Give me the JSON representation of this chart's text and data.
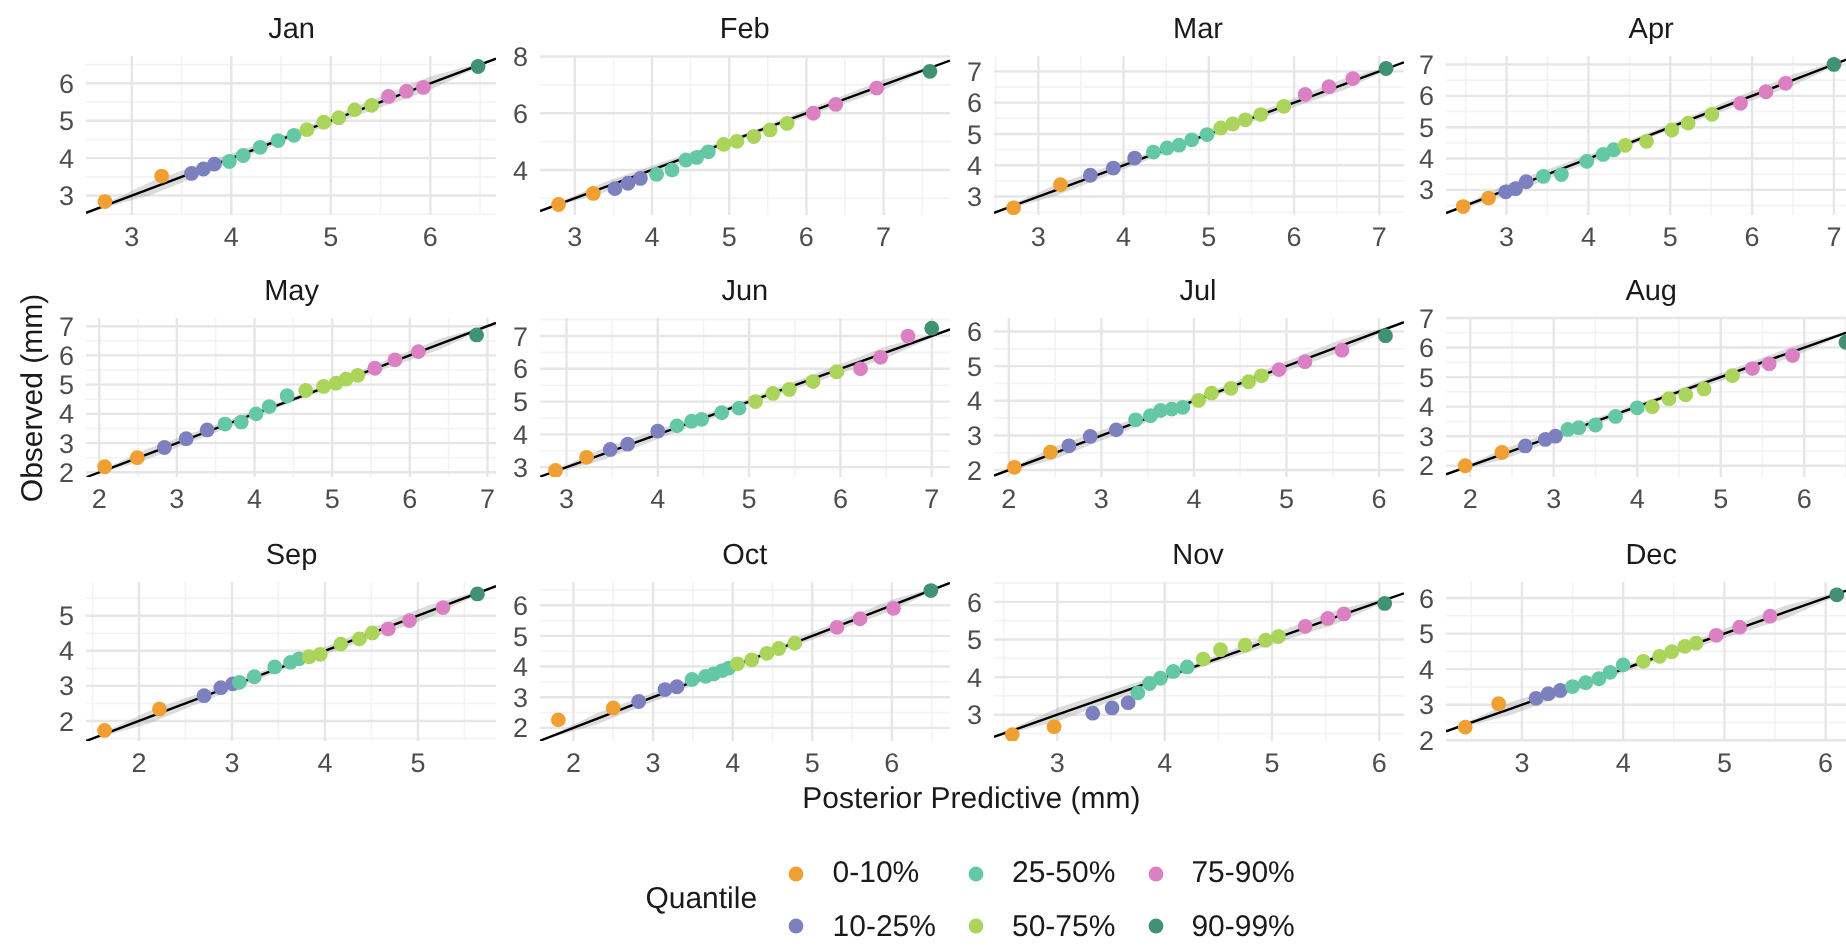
{
  "chart_data": [
    {
      "type": "scatter",
      "title": "Jan",
      "xlim": [
        2.54,
        6.66
      ],
      "ylim": [
        2.48,
        6.73
      ],
      "xticks": [
        3,
        4,
        5,
        6
      ],
      "yticks": [
        3,
        4,
        5,
        6
      ],
      "grid": true,
      "marker": "circle",
      "series": [
        {
          "color": "#f0a032",
          "x": [
            2.73,
            3.3
          ],
          "values": [
            2.84,
            3.52
          ]
        },
        {
          "color": "#7d80be",
          "x": [
            3.6,
            3.72,
            3.83
          ],
          "values": [
            3.59,
            3.71,
            3.84
          ]
        },
        {
          "color": "#64c8a5",
          "x": [
            3.98,
            4.12,
            4.29,
            4.47,
            4.63
          ],
          "values": [
            3.91,
            4.07,
            4.29,
            4.47,
            4.61
          ]
        },
        {
          "color": "#aad45a",
          "x": [
            4.76,
            4.93,
            5.08,
            5.24,
            5.41
          ],
          "values": [
            4.76,
            4.96,
            5.08,
            5.29,
            5.41
          ]
        },
        {
          "color": "#dc80c4",
          "x": [
            5.58,
            5.76,
            5.93
          ],
          "values": [
            5.65,
            5.79,
            5.89
          ]
        },
        {
          "color": "#419173",
          "x": [
            6.48
          ],
          "values": [
            6.45
          ]
        },
        {
          "type": "line",
          "marker": "none",
          "color": "#000000",
          "x": [
            2.54,
            3.2,
            4.6,
            6.0,
            6.66
          ],
          "values": [
            2.54,
            3.2,
            4.6,
            6.0,
            6.66
          ],
          "lower": [
            2.54,
            3.02,
            4.52,
            5.82,
            6.66
          ],
          "upper": [
            2.54,
            3.38,
            4.68,
            6.18,
            6.66
          ]
        }
      ]
    },
    {
      "type": "scatter",
      "title": "Feb",
      "xlim": [
        2.55,
        7.86
      ],
      "ylim": [
        2.41,
        8.02
      ],
      "xticks": [
        3,
        4,
        5,
        6,
        7
      ],
      "yticks": [
        4,
        6,
        8
      ],
      "grid": true,
      "marker": "circle",
      "series": [
        {
          "color": "#f0a032",
          "x": [
            2.79,
            3.24
          ],
          "values": [
            2.78,
            3.17
          ]
        },
        {
          "color": "#7d80be",
          "x": [
            3.52,
            3.69,
            3.85
          ],
          "values": [
            3.34,
            3.53,
            3.7
          ]
        },
        {
          "color": "#64c8a5",
          "x": [
            4.06,
            4.26,
            4.44,
            4.58,
            4.73
          ],
          "values": [
            3.84,
            4.0,
            4.35,
            4.44,
            4.64
          ]
        },
        {
          "color": "#aad45a",
          "x": [
            4.93,
            5.1,
            5.32,
            5.53,
            5.75
          ],
          "values": [
            4.9,
            5.01,
            5.18,
            5.41,
            5.64
          ]
        },
        {
          "color": "#dc80c4",
          "x": [
            6.09,
            6.38,
            6.91
          ],
          "values": [
            6.0,
            6.31,
            6.89
          ]
        },
        {
          "color": "#419173",
          "x": [
            7.6
          ],
          "values": [
            7.48
          ]
        },
        {
          "type": "line",
          "marker": "none",
          "color": "#000000",
          "x": [
            2.55,
            3.4,
            5.2,
            7.0,
            7.86
          ],
          "values": [
            2.55,
            3.4,
            5.2,
            7.0,
            7.86
          ],
          "lower": [
            2.55,
            3.22,
            5.12,
            6.82,
            7.86
          ],
          "upper": [
            2.55,
            3.58,
            5.28,
            7.18,
            7.86
          ]
        }
      ]
    },
    {
      "type": "scatter",
      "title": "Mar",
      "xlim": [
        2.48,
        7.29
      ],
      "ylim": [
        2.41,
        7.49
      ],
      "xticks": [
        3,
        4,
        5,
        6,
        7
      ],
      "yticks": [
        3,
        4,
        5,
        6,
        7
      ],
      "grid": true,
      "marker": "circle",
      "series": [
        {
          "color": "#f0a032",
          "x": [
            2.71,
            3.26
          ],
          "values": [
            2.64,
            3.38
          ]
        },
        {
          "color": "#7d80be",
          "x": [
            3.61,
            3.88,
            4.13
          ],
          "values": [
            3.68,
            3.91,
            4.23
          ]
        },
        {
          "color": "#64c8a5",
          "x": [
            4.35,
            4.51,
            4.65,
            4.8,
            4.98
          ],
          "values": [
            4.42,
            4.55,
            4.64,
            4.81,
            4.98
          ]
        },
        {
          "color": "#aad45a",
          "x": [
            5.14,
            5.28,
            5.43,
            5.61,
            5.88
          ],
          "values": [
            5.19,
            5.32,
            5.45,
            5.62,
            5.88
          ]
        },
        {
          "color": "#dc80c4",
          "x": [
            6.13,
            6.41,
            6.69
          ],
          "values": [
            6.26,
            6.51,
            6.77
          ]
        },
        {
          "color": "#419173",
          "x": [
            7.08
          ],
          "values": [
            7.09
          ]
        },
        {
          "type": "line",
          "marker": "none",
          "color": "#000000",
          "x": [
            2.48,
            3.2,
            4.9,
            6.6,
            7.29
          ],
          "values": [
            2.48,
            3.2,
            4.9,
            6.6,
            7.29
          ],
          "lower": [
            2.48,
            3.02,
            4.82,
            6.42,
            7.29
          ],
          "upper": [
            2.48,
            3.38,
            4.98,
            6.78,
            7.29
          ]
        }
      ]
    },
    {
      "type": "scatter",
      "title": "Apr",
      "xlim": [
        2.26,
        7.27
      ],
      "ylim": [
        2.2,
        7.27
      ],
      "xticks": [
        3,
        4,
        5,
        6,
        7
      ],
      "yticks": [
        3,
        4,
        5,
        6,
        7
      ],
      "grid": true,
      "marker": "circle",
      "series": [
        {
          "color": "#f0a032",
          "x": [
            2.47,
            2.78
          ],
          "values": [
            2.47,
            2.74
          ]
        },
        {
          "color": "#7d80be",
          "x": [
            2.99,
            3.11,
            3.24
          ],
          "values": [
            2.94,
            3.04,
            3.26
          ]
        },
        {
          "color": "#64c8a5",
          "x": [
            3.45,
            3.67,
            3.98,
            4.18,
            4.31
          ],
          "values": [
            3.43,
            3.49,
            3.91,
            4.13,
            4.28
          ]
        },
        {
          "color": "#aad45a",
          "x": [
            4.45,
            4.71,
            5.02,
            5.22,
            5.51
          ],
          "values": [
            4.42,
            4.55,
            4.91,
            5.13,
            5.41
          ]
        },
        {
          "color": "#dc80c4",
          "x": [
            5.86,
            6.17,
            6.41
          ],
          "values": [
            5.76,
            6.13,
            6.4
          ]
        },
        {
          "color": "#419173",
          "x": [
            7.0
          ],
          "values": [
            7.0
          ]
        },
        {
          "type": "line",
          "marker": "none",
          "color": "#000000",
          "x": [
            2.26,
            3.0,
            4.75,
            6.5,
            7.27
          ],
          "values": [
            2.26,
            3.0,
            4.75,
            6.5,
            7.27
          ],
          "lower": [
            2.26,
            2.82,
            4.67,
            6.32,
            7.27
          ],
          "upper": [
            2.26,
            3.18,
            4.83,
            6.68,
            7.27
          ]
        }
      ]
    },
    {
      "type": "scatter",
      "title": "May",
      "ylabel": "Observed (mm)",
      "xlim": [
        1.83,
        7.11
      ],
      "ylim": [
        1.84,
        7.28
      ],
      "xticks": [
        2,
        3,
        4,
        5,
        6,
        7
      ],
      "yticks": [
        2,
        3,
        4,
        5,
        6,
        7
      ],
      "grid": true,
      "marker": "circle",
      "series": [
        {
          "color": "#f0a032",
          "x": [
            2.07,
            2.49
          ],
          "values": [
            2.19,
            2.5
          ]
        },
        {
          "color": "#7d80be",
          "x": [
            2.84,
            3.12,
            3.39
          ],
          "values": [
            2.85,
            3.15,
            3.45
          ]
        },
        {
          "color": "#64c8a5",
          "x": [
            3.62,
            3.83,
            4.02,
            4.19,
            4.42
          ],
          "values": [
            3.65,
            3.72,
            4.0,
            4.25,
            4.62
          ]
        },
        {
          "color": "#aad45a",
          "x": [
            4.66,
            4.89,
            5.05,
            5.18,
            5.33
          ],
          "values": [
            4.8,
            4.94,
            5.05,
            5.19,
            5.32
          ]
        },
        {
          "color": "#dc80c4",
          "x": [
            5.55,
            5.81,
            6.11
          ],
          "values": [
            5.56,
            5.85,
            6.13
          ]
        },
        {
          "color": "#419173",
          "x": [
            6.86
          ],
          "values": [
            6.7
          ]
        },
        {
          "type": "line",
          "marker": "none",
          "color": "#000000",
          "x": [
            1.84,
            2.6,
            4.5,
            6.4,
            7.11
          ],
          "values": [
            1.84,
            2.6,
            4.5,
            6.4,
            7.11
          ],
          "lower": [
            1.84,
            2.42,
            4.42,
            6.22,
            7.11
          ],
          "upper": [
            1.84,
            2.78,
            4.58,
            6.58,
            7.11
          ]
        }
      ]
    },
    {
      "type": "scatter",
      "title": "Jun",
      "xlim": [
        2.71,
        7.2
      ],
      "ylim": [
        2.7,
        7.55
      ],
      "xticks": [
        3,
        4,
        5,
        6,
        7
      ],
      "yticks": [
        3,
        4,
        5,
        6,
        7
      ],
      "grid": true,
      "marker": "circle",
      "series": [
        {
          "color": "#f0a032",
          "x": [
            2.88,
            3.22
          ],
          "values": [
            2.9,
            3.3
          ]
        },
        {
          "color": "#7d80be",
          "x": [
            3.48,
            3.67,
            4.0
          ],
          "values": [
            3.54,
            3.7,
            4.1
          ]
        },
        {
          "color": "#64c8a5",
          "x": [
            4.21,
            4.37,
            4.48,
            4.7,
            4.89
          ],
          "values": [
            4.26,
            4.4,
            4.46,
            4.66,
            4.8
          ]
        },
        {
          "color": "#aad45a",
          "x": [
            5.07,
            5.26,
            5.44,
            5.7,
            5.96
          ],
          "values": [
            5.0,
            5.25,
            5.37,
            5.61,
            5.91
          ]
        },
        {
          "color": "#dc80c4",
          "x": [
            6.22,
            6.44,
            6.74
          ],
          "values": [
            6.0,
            6.35,
            7.0
          ]
        },
        {
          "color": "#419173",
          "x": [
            7.0
          ],
          "values": [
            7.24
          ]
        },
        {
          "type": "line",
          "marker": "none",
          "color": "#000000",
          "x": [
            2.71,
            3.4,
            5.0,
            6.5,
            7.2
          ],
          "values": [
            2.71,
            3.4,
            5.0,
            6.5,
            7.2
          ],
          "lower": [
            2.71,
            3.22,
            4.92,
            6.32,
            7.2
          ],
          "upper": [
            2.71,
            3.58,
            5.08,
            6.68,
            7.2
          ]
        }
      ]
    },
    {
      "type": "scatter",
      "title": "Jul",
      "xlim": [
        1.84,
        6.27
      ],
      "ylim": [
        1.8,
        6.39
      ],
      "xticks": [
        2,
        3,
        4,
        5,
        6
      ],
      "yticks": [
        2,
        3,
        4,
        5,
        6
      ],
      "grid": true,
      "marker": "circle",
      "series": [
        {
          "color": "#f0a032",
          "x": [
            2.06,
            2.45
          ],
          "values": [
            2.08,
            2.52
          ]
        },
        {
          "color": "#7d80be",
          "x": [
            2.65,
            2.88,
            3.16
          ],
          "values": [
            2.7,
            2.97,
            3.16
          ]
        },
        {
          "color": "#64c8a5",
          "x": [
            3.37,
            3.53,
            3.64,
            3.76,
            3.88
          ],
          "values": [
            3.45,
            3.57,
            3.72,
            3.76,
            3.81
          ]
        },
        {
          "color": "#aad45a",
          "x": [
            4.05,
            4.19,
            4.4,
            4.59,
            4.73
          ],
          "values": [
            4.01,
            4.22,
            4.36,
            4.55,
            4.72
          ]
        },
        {
          "color": "#dc80c4",
          "x": [
            4.92,
            5.2,
            5.6
          ],
          "values": [
            4.9,
            5.13,
            5.46
          ]
        },
        {
          "color": "#419173",
          "x": [
            6.07
          ],
          "values": [
            5.88
          ]
        },
        {
          "type": "line",
          "marker": "none",
          "color": "#000000",
          "x": [
            1.84,
            2.5,
            4.05,
            5.6,
            6.27
          ],
          "values": [
            1.84,
            2.5,
            4.05,
            5.6,
            6.27
          ],
          "lower": [
            1.84,
            2.32,
            3.97,
            5.42,
            6.27
          ],
          "upper": [
            1.84,
            2.68,
            4.13,
            5.78,
            6.27
          ]
        }
      ]
    },
    {
      "type": "scatter",
      "title": "Aug",
      "xlim": [
        1.71,
        6.62
      ],
      "ylim": [
        1.62,
        7.0
      ],
      "xticks": [
        2,
        3,
        4,
        5,
        6
      ],
      "yticks": [
        2,
        3,
        4,
        5,
        6,
        7
      ],
      "grid": true,
      "marker": "circle",
      "series": [
        {
          "color": "#f0a032",
          "x": [
            1.94,
            2.38
          ],
          "values": [
            2.0,
            2.45
          ]
        },
        {
          "color": "#7d80be",
          "x": [
            2.66,
            2.9,
            3.02
          ],
          "values": [
            2.67,
            2.89,
            3.0
          ]
        },
        {
          "color": "#64c8a5",
          "x": [
            3.17,
            3.3,
            3.5,
            3.74,
            4.0
          ],
          "values": [
            3.23,
            3.29,
            3.38,
            3.67,
            3.96
          ]
        },
        {
          "color": "#aad45a",
          "x": [
            4.18,
            4.38,
            4.58,
            4.8,
            5.14
          ],
          "values": [
            4.0,
            4.27,
            4.4,
            4.6,
            5.05
          ]
        },
        {
          "color": "#dc80c4",
          "x": [
            5.38,
            5.58,
            5.86
          ],
          "values": [
            5.29,
            5.45,
            5.73
          ]
        },
        {
          "color": "#419173",
          "x": [
            6.5
          ],
          "values": [
            6.18
          ]
        },
        {
          "type": "line",
          "marker": "none",
          "color": "#000000",
          "x": [
            1.71,
            2.4,
            4.15,
            5.9,
            6.62
          ],
          "values": [
            1.71,
            2.4,
            4.15,
            5.9,
            6.62
          ],
          "lower": [
            1.71,
            2.22,
            4.07,
            5.72,
            6.62
          ],
          "upper": [
            1.71,
            2.58,
            4.23,
            6.08,
            6.62
          ]
        }
      ]
    },
    {
      "type": "scatter",
      "title": "Sep",
      "xlim": [
        1.43,
        5.84
      ],
      "ylim": [
        1.43,
        5.96
      ],
      "xticks": [
        2,
        3,
        4,
        5
      ],
      "yticks": [
        2,
        3,
        4,
        5
      ],
      "grid": true,
      "marker": "circle",
      "series": [
        {
          "color": "#f0a032",
          "x": [
            1.63,
            2.22
          ],
          "values": [
            1.73,
            2.34
          ]
        },
        {
          "color": "#7d80be",
          "x": [
            2.7,
            2.88,
            3.01
          ],
          "values": [
            2.72,
            2.95,
            3.06
          ]
        },
        {
          "color": "#64c8a5",
          "x": [
            3.08,
            3.24,
            3.46,
            3.63,
            3.72
          ],
          "values": [
            3.1,
            3.26,
            3.54,
            3.67,
            3.77
          ]
        },
        {
          "color": "#aad45a",
          "x": [
            3.83,
            3.95,
            4.17,
            4.37,
            4.51
          ],
          "values": [
            3.83,
            3.9,
            4.19,
            4.34,
            4.51
          ]
        },
        {
          "color": "#dc80c4",
          "x": [
            4.68,
            4.91,
            5.27
          ],
          "values": [
            4.62,
            4.86,
            5.23
          ]
        },
        {
          "color": "#419173",
          "x": [
            5.64
          ],
          "values": [
            5.62
          ]
        },
        {
          "type": "line",
          "marker": "none",
          "color": "#000000",
          "x": [
            1.43,
            2.1,
            3.6,
            5.1,
            5.84
          ],
          "values": [
            1.43,
            2.1,
            3.6,
            5.1,
            5.84
          ],
          "lower": [
            1.43,
            1.92,
            3.52,
            4.92,
            5.84
          ],
          "upper": [
            1.43,
            2.28,
            3.68,
            5.28,
            5.84
          ]
        }
      ]
    },
    {
      "type": "scatter",
      "title": "Oct",
      "xlabel": "Posterior Predictive (mm)",
      "legend": "bottom",
      "legend_title": "Quantile",
      "xlim": [
        1.58,
        6.73
      ],
      "ylim": [
        1.57,
        6.76
      ],
      "xticks": [
        2,
        3,
        4,
        5,
        6
      ],
      "yticks": [
        2,
        3,
        4,
        5,
        6
      ],
      "grid": true,
      "marker": "circle",
      "series": [
        {
          "name": "0-10%",
          "color": "#f0a032",
          "x": [
            1.81,
            2.5
          ],
          "values": [
            2.26,
            2.65
          ]
        },
        {
          "name": "10-25%",
          "color": "#7d80be",
          "x": [
            2.82,
            3.15,
            3.3
          ],
          "values": [
            2.86,
            3.25,
            3.34
          ]
        },
        {
          "name": "25-50%",
          "color": "#64c8a5",
          "x": [
            3.49,
            3.66,
            3.76,
            3.87,
            3.95
          ],
          "values": [
            3.58,
            3.68,
            3.76,
            3.87,
            3.95
          ]
        },
        {
          "name": "50-75%",
          "color": "#aad45a",
          "x": [
            4.06,
            4.24,
            4.43,
            4.58,
            4.78
          ],
          "values": [
            4.09,
            4.22,
            4.43,
            4.59,
            4.76
          ]
        },
        {
          "name": "75-90%",
          "color": "#dc80c4",
          "x": [
            5.31,
            5.6,
            6.02
          ],
          "values": [
            5.28,
            5.56,
            5.9
          ]
        },
        {
          "name": "90-99%",
          "color": "#419173",
          "x": [
            6.49
          ],
          "values": [
            6.48
          ]
        },
        {
          "type": "line",
          "marker": "none",
          "color": "#000000",
          "x": [
            1.58,
            2.3,
            4.15,
            6.0,
            6.73
          ],
          "values": [
            1.58,
            2.3,
            4.15,
            6.0,
            6.73
          ],
          "lower": [
            1.58,
            2.12,
            4.07,
            5.82,
            6.73
          ],
          "upper": [
            1.58,
            2.48,
            4.23,
            6.18,
            6.73
          ]
        }
      ]
    },
    {
      "type": "scatter",
      "title": "Nov",
      "xlim": [
        2.41,
        6.23
      ],
      "ylim": [
        2.3,
        6.53
      ],
      "xticks": [
        3,
        4,
        5,
        6
      ],
      "yticks": [
        3,
        4,
        5,
        6
      ],
      "grid": true,
      "marker": "circle",
      "series": [
        {
          "color": "#f0a032",
          "x": [
            2.58,
            2.97
          ],
          "values": [
            2.47,
            2.68
          ]
        },
        {
          "color": "#7d80be",
          "x": [
            3.33,
            3.51,
            3.66
          ],
          "values": [
            3.04,
            3.18,
            3.32
          ]
        },
        {
          "color": "#64c8a5",
          "x": [
            3.75,
            3.86,
            3.96,
            4.08,
            4.21
          ],
          "values": [
            3.58,
            3.83,
            3.97,
            4.15,
            4.27
          ]
        },
        {
          "color": "#aad45a",
          "x": [
            4.36,
            4.52,
            4.75,
            4.94,
            5.06
          ],
          "values": [
            4.48,
            4.73,
            4.85,
            4.98,
            5.08
          ]
        },
        {
          "color": "#dc80c4",
          "x": [
            5.31,
            5.52,
            5.67
          ],
          "values": [
            5.35,
            5.56,
            5.68
          ]
        },
        {
          "color": "#419173",
          "x": [
            6.05
          ],
          "values": [
            5.96
          ]
        },
        {
          "type": "line",
          "marker": "none",
          "color": "#000000",
          "x": [
            2.41,
            3.0,
            4.3,
            5.6,
            6.23
          ],
          "values": [
            2.41,
            3.0,
            4.3,
            5.6,
            6.23
          ],
          "lower": [
            2.41,
            2.82,
            4.22,
            5.42,
            6.23
          ],
          "upper": [
            2.41,
            3.18,
            4.38,
            5.78,
            6.23
          ]
        }
      ]
    },
    {
      "type": "scatter",
      "title": "Dec",
      "xlim": [
        2.25,
        6.3
      ],
      "ylim": [
        1.98,
        6.45
      ],
      "xticks": [
        3,
        4,
        5,
        6
      ],
      "yticks": [
        2,
        3,
        4,
        5,
        6
      ],
      "grid": true,
      "marker": "circle",
      "series": [
        {
          "color": "#f0a032",
          "x": [
            2.44,
            2.77
          ],
          "values": [
            2.37,
            3.03
          ]
        },
        {
          "color": "#7d80be",
          "x": [
            3.14,
            3.26,
            3.38
          ],
          "values": [
            3.18,
            3.31,
            3.4
          ]
        },
        {
          "color": "#64c8a5",
          "x": [
            3.5,
            3.63,
            3.76,
            3.87,
            4.0
          ],
          "values": [
            3.51,
            3.62,
            3.73,
            3.91,
            4.12
          ]
        },
        {
          "color": "#aad45a",
          "x": [
            4.2,
            4.36,
            4.48,
            4.61,
            4.72
          ],
          "values": [
            4.22,
            4.36,
            4.49,
            4.64,
            4.73
          ]
        },
        {
          "color": "#dc80c4",
          "x": [
            4.92,
            5.15,
            5.45
          ],
          "values": [
            4.95,
            5.18,
            5.49
          ]
        },
        {
          "color": "#419173",
          "x": [
            6.11
          ],
          "values": [
            6.09
          ]
        },
        {
          "type": "line",
          "marker": "none",
          "color": "#000000",
          "x": [
            2.25,
            2.9,
            4.25,
            5.6,
            6.3
          ],
          "values": [
            2.25,
            2.9,
            4.25,
            5.6,
            6.3
          ],
          "lower": [
            2.25,
            2.72,
            4.17,
            5.42,
            6.3
          ],
          "upper": [
            2.25,
            3.08,
            4.33,
            5.78,
            6.3
          ]
        }
      ]
    }
  ]
}
